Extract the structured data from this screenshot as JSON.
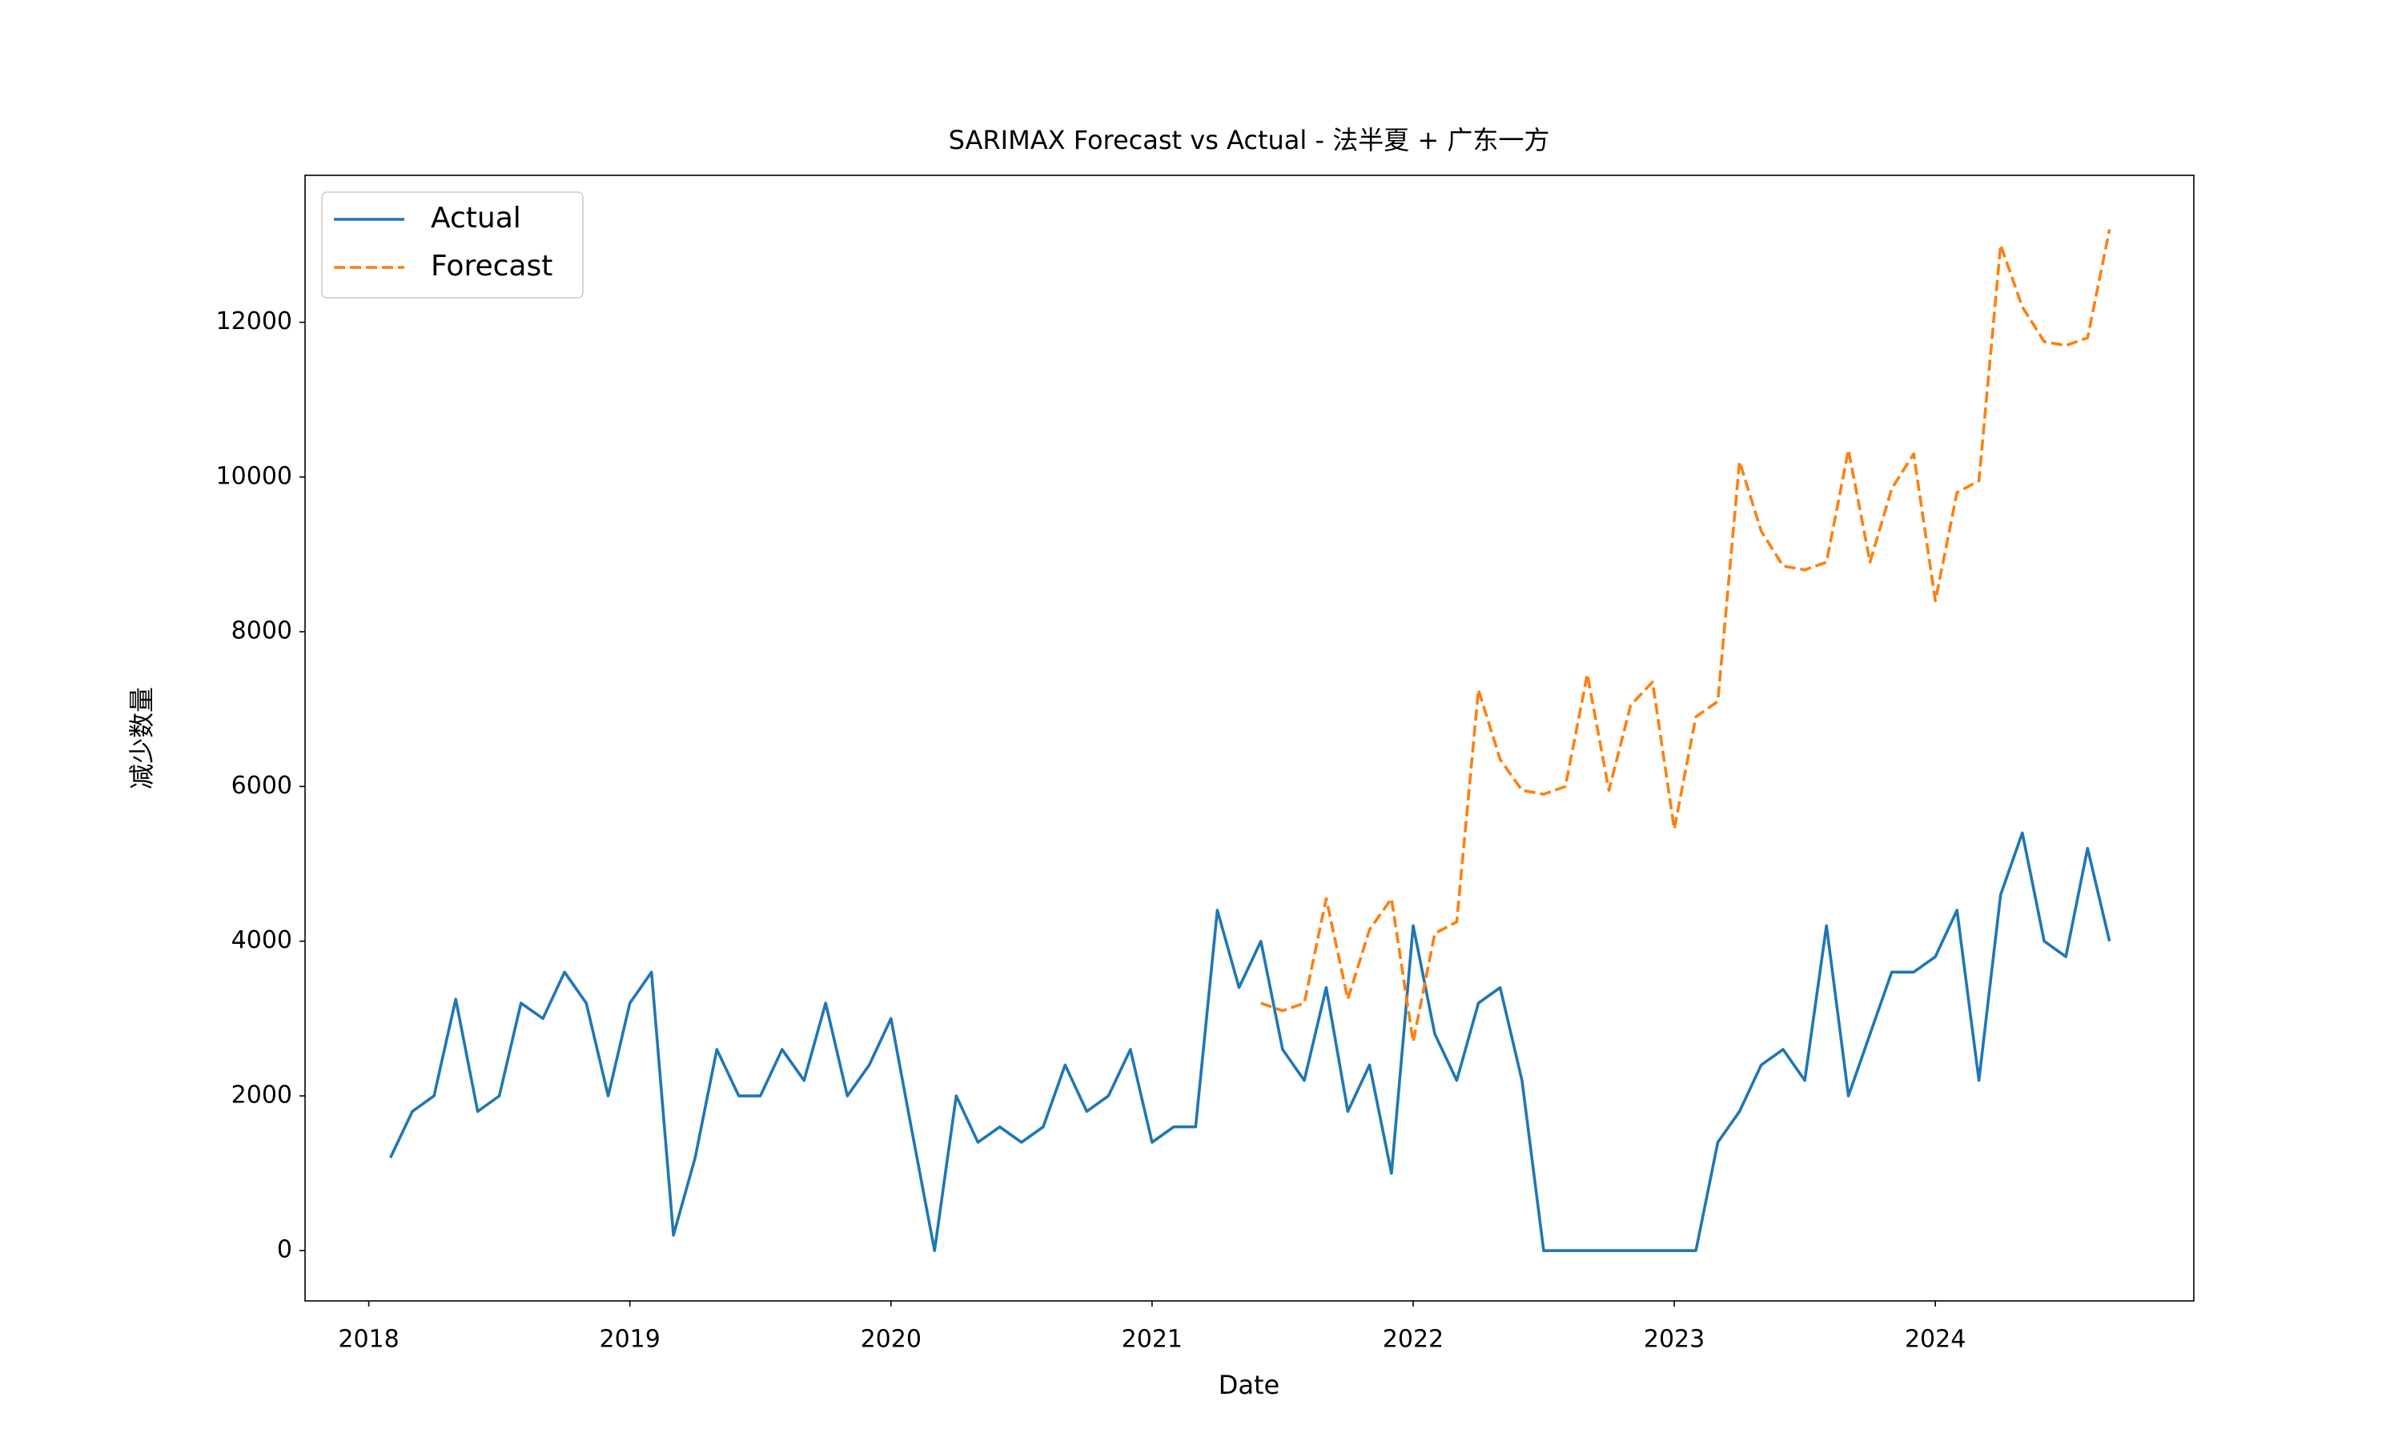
{
  "chart_data": {
    "type": "line",
    "title": "SARIMAX Forecast vs Actual - 法半夏 + 广东一方",
    "x_label": "Date",
    "y_label": "减少数量",
    "xlim": [
      2017.756,
      2024.99
    ],
    "xticks": [
      2018,
      2019,
      2020,
      2021,
      2022,
      2023,
      2024
    ],
    "ylim": [
      -650,
      13900
    ],
    "yticks": [
      0,
      2000,
      4000,
      6000,
      8000,
      10000,
      12000
    ],
    "legend": "upper left",
    "grid": false,
    "series": [
      {
        "name": "Actual",
        "color": "#1f77b4",
        "style": "solid",
        "x": [
          2018.083,
          2018.167,
          2018.25,
          2018.333,
          2018.417,
          2018.5,
          2018.583,
          2018.667,
          2018.75,
          2018.833,
          2018.917,
          2019,
          2019.083,
          2019.167,
          2019.25,
          2019.333,
          2019.417,
          2019.5,
          2019.583,
          2019.667,
          2019.75,
          2019.833,
          2019.917,
          2020,
          2020.083,
          2020.167,
          2020.25,
          2020.333,
          2020.417,
          2020.5,
          2020.583,
          2020.667,
          2020.75,
          2020.833,
          2020.917,
          2021,
          2021.083,
          2021.167,
          2021.25,
          2021.333,
          2021.417,
          2021.5,
          2021.583,
          2021.667,
          2021.75,
          2021.833,
          2021.917,
          2022,
          2022.083,
          2022.167,
          2022.25,
          2022.333,
          2022.417,
          2022.5,
          2022.583,
          2022.667,
          2022.75,
          2022.833,
          2022.917,
          2023,
          2023.083,
          2023.167,
          2023.25,
          2023.333,
          2023.417,
          2023.5,
          2023.583,
          2023.667,
          2023.75,
          2023.833,
          2023.917,
          2024,
          2024.083,
          2024.167,
          2024.25,
          2024.333,
          2024.417,
          2024.5,
          2024.583,
          2024.667
        ],
        "values": [
          1200,
          1800,
          2000,
          3250,
          1800,
          2000,
          3200,
          3000,
          3600,
          3200,
          2000,
          3200,
          3600,
          200,
          1200,
          2600,
          2000,
          2000,
          2600,
          2200,
          3200,
          2000,
          2400,
          3000,
          1500,
          0,
          2000,
          1400,
          1600,
          1400,
          1600,
          2400,
          1800,
          2000,
          2600,
          1400,
          1600,
          1600,
          4400,
          3400,
          4000,
          2600,
          2200,
          3400,
          1800,
          2400,
          1000,
          4200,
          2800,
          2200,
          3200,
          3400,
          2200,
          0,
          0,
          0,
          0,
          0,
          0,
          0,
          0,
          1400,
          1800,
          2400,
          2600,
          2200,
          4200,
          2000,
          2800,
          3600,
          3600,
          3800,
          4400,
          2200,
          4600,
          5400,
          4000,
          3800,
          5200,
          4000
        ]
      },
      {
        "name": "Forecast",
        "color": "#ff7f0e",
        "style": "dashed",
        "x": [
          2021.417,
          2021.5,
          2021.583,
          2021.667,
          2021.75,
          2021.833,
          2021.917,
          2022,
          2022.083,
          2022.167,
          2022.25,
          2022.333,
          2022.417,
          2022.5,
          2022.583,
          2022.667,
          2022.75,
          2022.833,
          2022.917,
          2023,
          2023.083,
          2023.167,
          2023.25,
          2023.333,
          2023.417,
          2023.5,
          2023.583,
          2023.667,
          2023.75,
          2023.833,
          2023.917,
          2024,
          2024.083,
          2024.167,
          2024.25,
          2024.333,
          2024.417,
          2024.5,
          2024.583,
          2024.667
        ],
        "values": [
          3200,
          3100,
          3200,
          4550,
          3250,
          4150,
          4550,
          2700,
          4100,
          4250,
          7250,
          6350,
          5950,
          5900,
          6000,
          7450,
          5950,
          7050,
          7350,
          5450,
          6900,
          7100,
          10200,
          9300,
          8850,
          8800,
          8900,
          10350,
          8900,
          9850,
          10300,
          8400,
          9800,
          9950,
          13000,
          12200,
          11750,
          11700,
          11800,
          13200
        ]
      }
    ]
  }
}
